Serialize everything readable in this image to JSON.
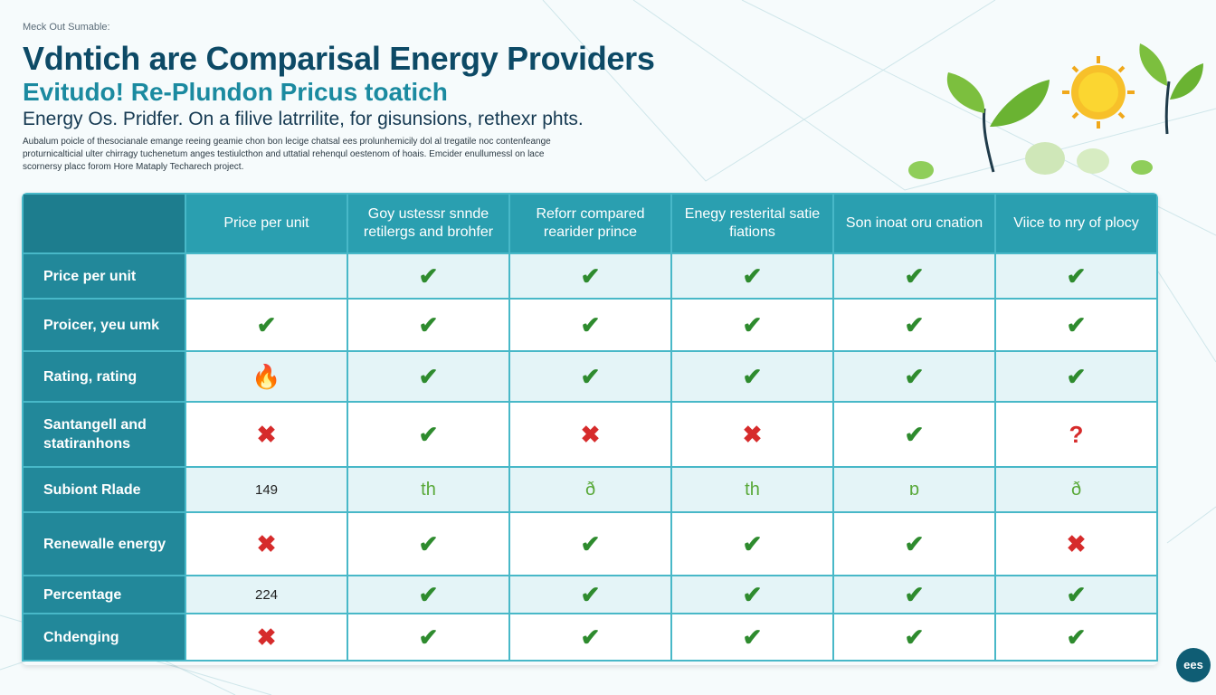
{
  "header": {
    "kicker": "Meck Out Sumable:",
    "title": "Vdntich are Comparisal Energy Providers",
    "subtitle": "Evitudo! Re-Plundon Pricus toatich",
    "tagline": "Energy Os. Pridfer. On a filive latrrilite, for gisunsions, rethexr phts.",
    "description": "Aubalum poicle of thesocianale emange reeing geamie chon bon lecige chatsal ees prolunhemicily dol al tregatile noc contenfeange proturnicalticial ulter chirragy tuchenetum anges testiulcthon and uttatial rehenqul oestenom of hoais. Emcider enullumessl on lace scornersy placc forom Hore Mataply Techarech project."
  },
  "colors": {
    "header_bg": "#2a9fb0",
    "label_bg": "#22889a",
    "check": "#2e8b2e",
    "cross": "#d62b2b",
    "title": "#0d4a66"
  },
  "table": {
    "columns": [
      "Price per unit",
      "Goy ustessr snnde retilergs and brohfer",
      "Reforr compared rearider prince",
      "Enegy resterital satie fiations",
      "Son inoat oru cnation",
      "Viice to nry of plocy"
    ],
    "rows": [
      {
        "label": "Price per unit",
        "cells": [
          "",
          "check",
          "check",
          "check",
          "check",
          "check"
        ]
      },
      {
        "label": "Proicer, yeu umk",
        "cells": [
          "check",
          "check",
          "check",
          "check",
          "check",
          "check"
        ]
      },
      {
        "label": "Rating, rating",
        "cells": [
          "fire",
          "check",
          "check",
          "check",
          "check",
          "check"
        ]
      },
      {
        "label": "Santangell and statiranhons",
        "cells": [
          "cross",
          "check",
          "cross",
          "cross",
          "check",
          "question"
        ]
      },
      {
        "label": "Subiont Rlade",
        "cells": [
          "149",
          "misc:th",
          "misc:ð",
          "misc:th",
          "misc:ɒ",
          "misc:ð"
        ]
      },
      {
        "label": "Renewalle energy",
        "cells": [
          "cross",
          "check",
          "check",
          "check",
          "check",
          "cross"
        ]
      },
      {
        "label": "Percentage",
        "cells": [
          "224",
          "check",
          "check",
          "check",
          "check",
          "check"
        ]
      },
      {
        "label": "Chdenging",
        "cells": [
          "cross",
          "check",
          "check",
          "check",
          "check",
          "check"
        ]
      }
    ]
  },
  "icons": {
    "check": "✔",
    "cross": "✖",
    "question": "?",
    "fire": "🔥"
  },
  "badge": {
    "label": "ees"
  }
}
